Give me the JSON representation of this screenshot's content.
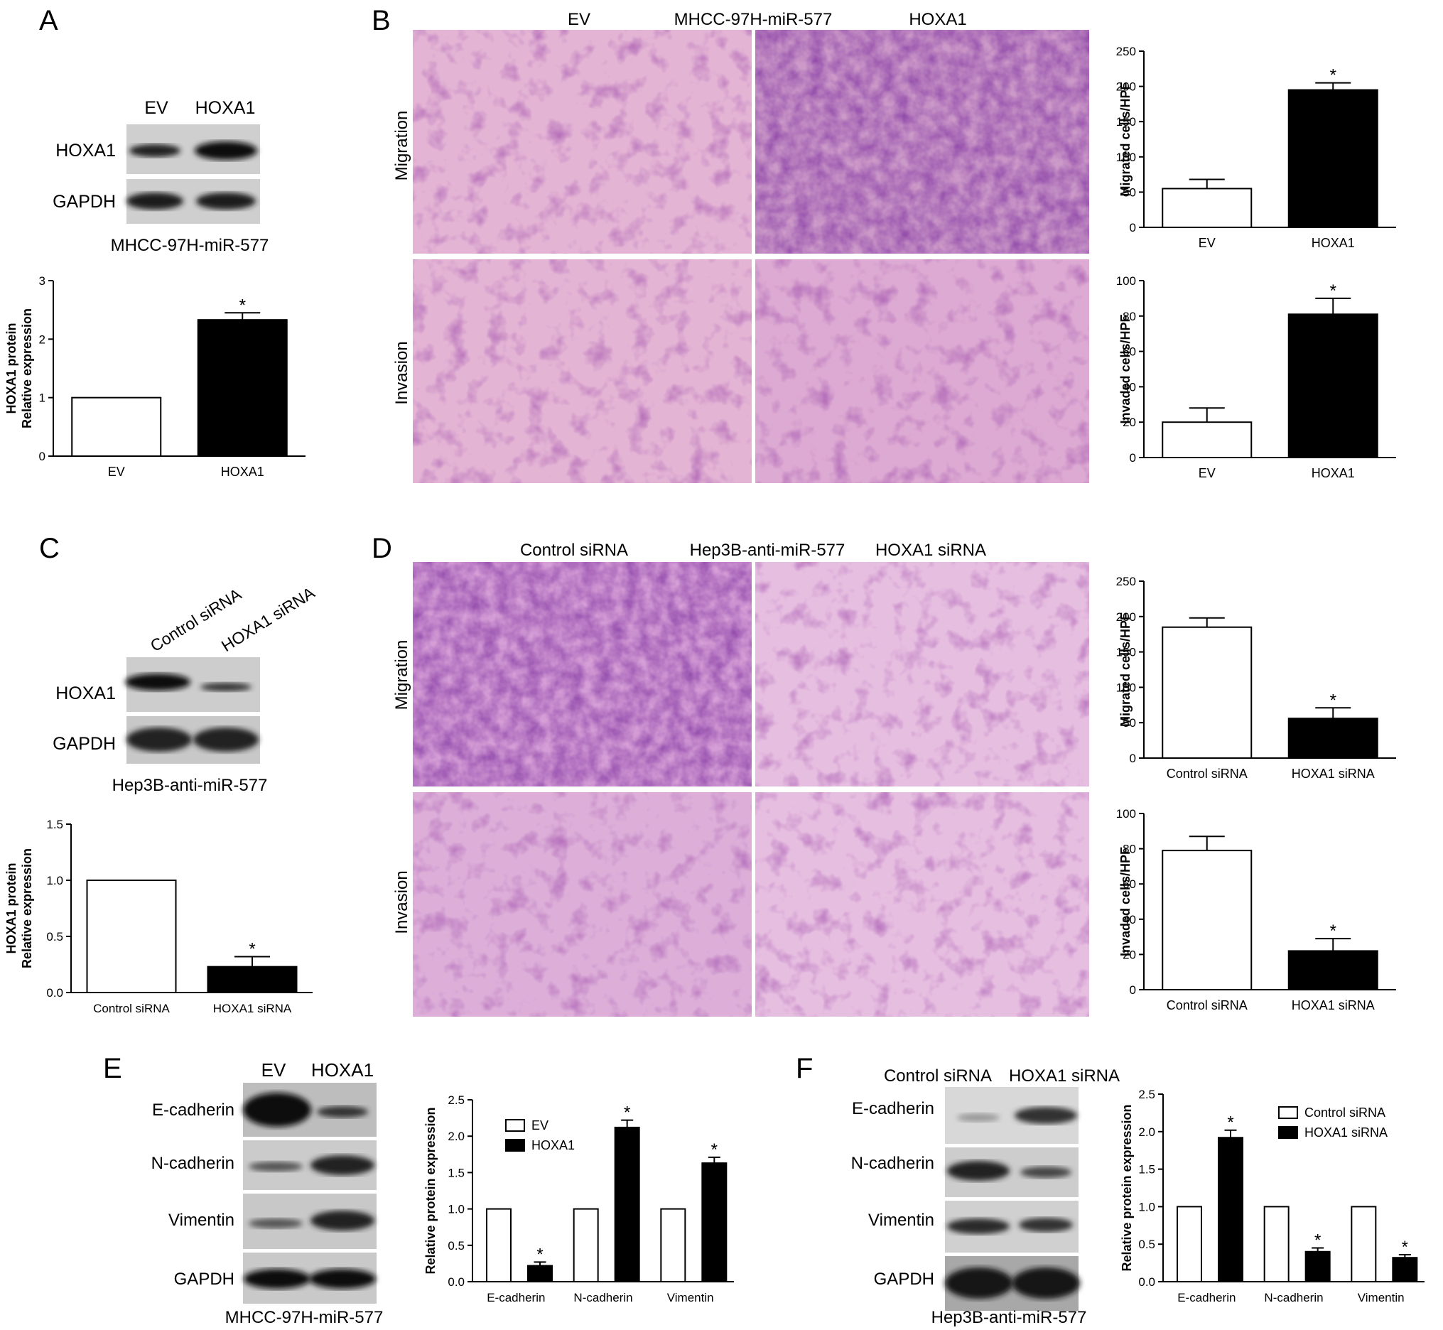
{
  "panels": {
    "A": {
      "letter": "A",
      "blot": {
        "lanes": [
          "EV",
          "HOXA1"
        ],
        "rows": [
          "HOXA1",
          "GAPDH"
        ],
        "caption": "MHCC-97H-miR-577"
      },
      "chart_data": {
        "type": "bar",
        "categories": [
          "EV",
          "HOXA1"
        ],
        "values": [
          1.0,
          2.33
        ],
        "errors": [
          0,
          0.12
        ],
        "stars": [
          "",
          "*"
        ],
        "ylim": [
          0,
          3
        ],
        "ticks": [
          "0",
          "1",
          "2",
          "3"
        ],
        "ylabel": [
          "HOXA1 protein",
          "Relative expression"
        ],
        "fills": [
          "#ffffff",
          "#000000"
        ]
      }
    },
    "B": {
      "letter": "B",
      "header": {
        "left": "EV",
        "center": "MHCC-97H-miR-577",
        "right": "HOXA1"
      },
      "rowlabels": [
        "Migration",
        "Invasion"
      ],
      "chart_data": [
        {
          "type": "bar",
          "categories": [
            "EV",
            "HOXA1"
          ],
          "values": [
            55,
            195
          ],
          "errors": [
            13,
            10
          ],
          "stars": [
            "",
            "*"
          ],
          "ylim": [
            0,
            250
          ],
          "ticks": [
            "0",
            "50",
            "100",
            "150",
            "200",
            "250"
          ],
          "ylabel": "Migrated cells/HPF",
          "fills": [
            "#ffffff",
            "#000000"
          ]
        },
        {
          "type": "bar",
          "categories": [
            "EV",
            "HOXA1"
          ],
          "values": [
            20,
            81
          ],
          "errors": [
            8,
            9
          ],
          "stars": [
            "",
            "*"
          ],
          "ylim": [
            0,
            100
          ],
          "ticks": [
            "0",
            "20",
            "40",
            "60",
            "80",
            "100"
          ],
          "ylabel": "Invaded cells/HPF",
          "fills": [
            "#ffffff",
            "#000000"
          ]
        }
      ]
    },
    "C": {
      "letter": "C",
      "blot": {
        "lanes": [
          "Control siRNA",
          "HOXA1 siRNA"
        ],
        "rows": [
          "HOXA1",
          "GAPDH"
        ],
        "caption": "Hep3B-anti-miR-577"
      },
      "chart_data": {
        "type": "bar",
        "categories": [
          "Control siRNA",
          "HOXA1 siRNA"
        ],
        "values": [
          1.0,
          0.23
        ],
        "errors": [
          0,
          0.09
        ],
        "stars": [
          "",
          "*"
        ],
        "ylim": [
          0,
          1.5
        ],
        "ticks": [
          "0.0",
          "0.5",
          "1.0",
          "1.5"
        ],
        "ylabel": [
          "HOXA1 protein",
          "Relative expression"
        ],
        "fills": [
          "#ffffff",
          "#000000"
        ]
      }
    },
    "D": {
      "letter": "D",
      "header": {
        "left": "Control siRNA",
        "center": "Hep3B-anti-miR-577",
        "right": "HOXA1 siRNA"
      },
      "rowlabels": [
        "Migration",
        "Invasion"
      ],
      "chart_data": [
        {
          "type": "bar",
          "categories": [
            "Control siRNA",
            "HOXA1 siRNA"
          ],
          "values": [
            185,
            56
          ],
          "errors": [
            13,
            15
          ],
          "stars": [
            "",
            "*"
          ],
          "ylim": [
            0,
            250
          ],
          "ticks": [
            "0",
            "50",
            "100",
            "150",
            "200",
            "250"
          ],
          "ylabel": "Migrated cells/HPF",
          "fills": [
            "#ffffff",
            "#000000"
          ]
        },
        {
          "type": "bar",
          "categories": [
            "Control siRNA",
            "HOXA1 siRNA"
          ],
          "values": [
            79,
            22
          ],
          "errors": [
            8,
            7
          ],
          "stars": [
            "",
            "*"
          ],
          "ylim": [
            0,
            100
          ],
          "ticks": [
            "0",
            "20",
            "40",
            "60",
            "80",
            "100"
          ],
          "ylabel": "Invaded cells/HPF",
          "fills": [
            "#ffffff",
            "#000000"
          ]
        }
      ]
    },
    "E": {
      "letter": "E",
      "blot": {
        "lanes": [
          "EV",
          "HOXA1"
        ],
        "rows": [
          "E-cadherin",
          "N-cadherin",
          "Vimentin",
          "GAPDH"
        ],
        "caption": "MHCC-97H-miR-577"
      },
      "chart_data": {
        "type": "bar",
        "categories": [
          "E-cadherin",
          "N-cadherin",
          "Vimentin"
        ],
        "series": [
          {
            "name": "EV",
            "values": [
              1,
              1,
              1
            ],
            "errors": [
              0,
              0,
              0
            ],
            "fill": "#ffffff"
          },
          {
            "name": "HOXA1",
            "values": [
              0.22,
              2.12,
              1.63
            ],
            "errors": [
              0.05,
              0.1,
              0.08
            ],
            "fill": "#000000"
          }
        ],
        "stars": [
          "*",
          "*",
          "*"
        ],
        "ylim": [
          0,
          2.5
        ],
        "ticks": [
          "0.0",
          "0.5",
          "1.0",
          "1.5",
          "2.0",
          "2.5"
        ],
        "ylabel": "Relative protein expression",
        "legend": "top-left"
      }
    },
    "F": {
      "letter": "F",
      "blot": {
        "lanes": [
          "Control siRNA",
          "HOXA1 siRNA"
        ],
        "rows": [
          "E-cadherin",
          "N-cadherin",
          "Vimentin",
          "GAPDH"
        ],
        "caption": "Hep3B-anti-miR-577"
      },
      "chart_data": {
        "type": "bar",
        "categories": [
          "E-cadherin",
          "N-cadherin",
          "Vimentin"
        ],
        "series": [
          {
            "name": "Control siRNA",
            "values": [
              1,
              1,
              1
            ],
            "errors": [
              0,
              0,
              0
            ],
            "fill": "#ffffff"
          },
          {
            "name": "HOXA1 siRNA",
            "values": [
              1.92,
              0.4,
              0.32
            ],
            "errors": [
              0.1,
              0.05,
              0.04
            ],
            "fill": "#000000"
          }
        ],
        "stars": [
          "*",
          "*",
          "*"
        ],
        "ylim": [
          0,
          2.5
        ],
        "ticks": [
          "0.0",
          "0.5",
          "1.0",
          "1.5",
          "2.0",
          "2.5"
        ],
        "ylabel": "Relative protein expression",
        "legend": "top-right"
      }
    }
  }
}
